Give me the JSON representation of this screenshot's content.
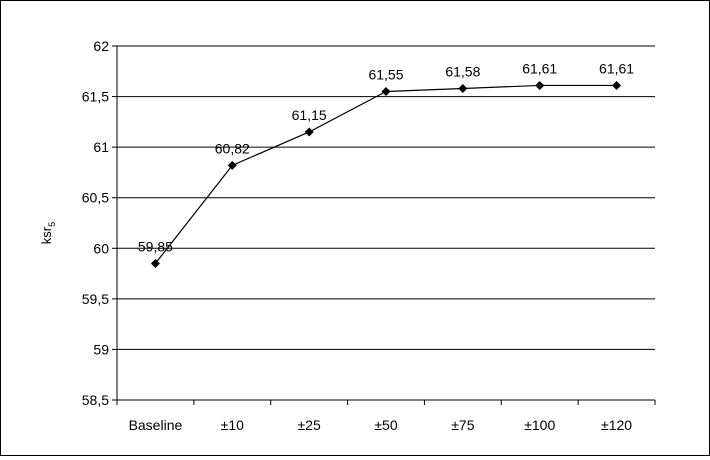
{
  "chart_data": {
    "type": "line",
    "categories": [
      "Baseline",
      "±10",
      "±25",
      "±50",
      "±75",
      "±100",
      "±120"
    ],
    "series": [
      {
        "values": [
          59.85,
          60.82,
          61.15,
          61.55,
          61.58,
          61.61,
          61.61
        ]
      }
    ],
    "data_labels": [
      "59,85",
      "60,82",
      "61,15",
      "61,55",
      "61,58",
      "61,61",
      "61,61"
    ],
    "y_ticks": [
      58.5,
      59,
      59.5,
      60,
      60.5,
      61,
      61.5,
      62
    ],
    "y_tick_labels": [
      "58,5",
      "59",
      "59,5",
      "60",
      "60,5",
      "61",
      "61,5",
      "62"
    ],
    "ylabel": "ksr",
    "ylabel_subscript": "5",
    "xlabel": "",
    "title": "",
    "ylim": [
      58.5,
      62
    ],
    "grid": true,
    "legend": false,
    "line_color": "#000000",
    "marker": "diamond"
  }
}
